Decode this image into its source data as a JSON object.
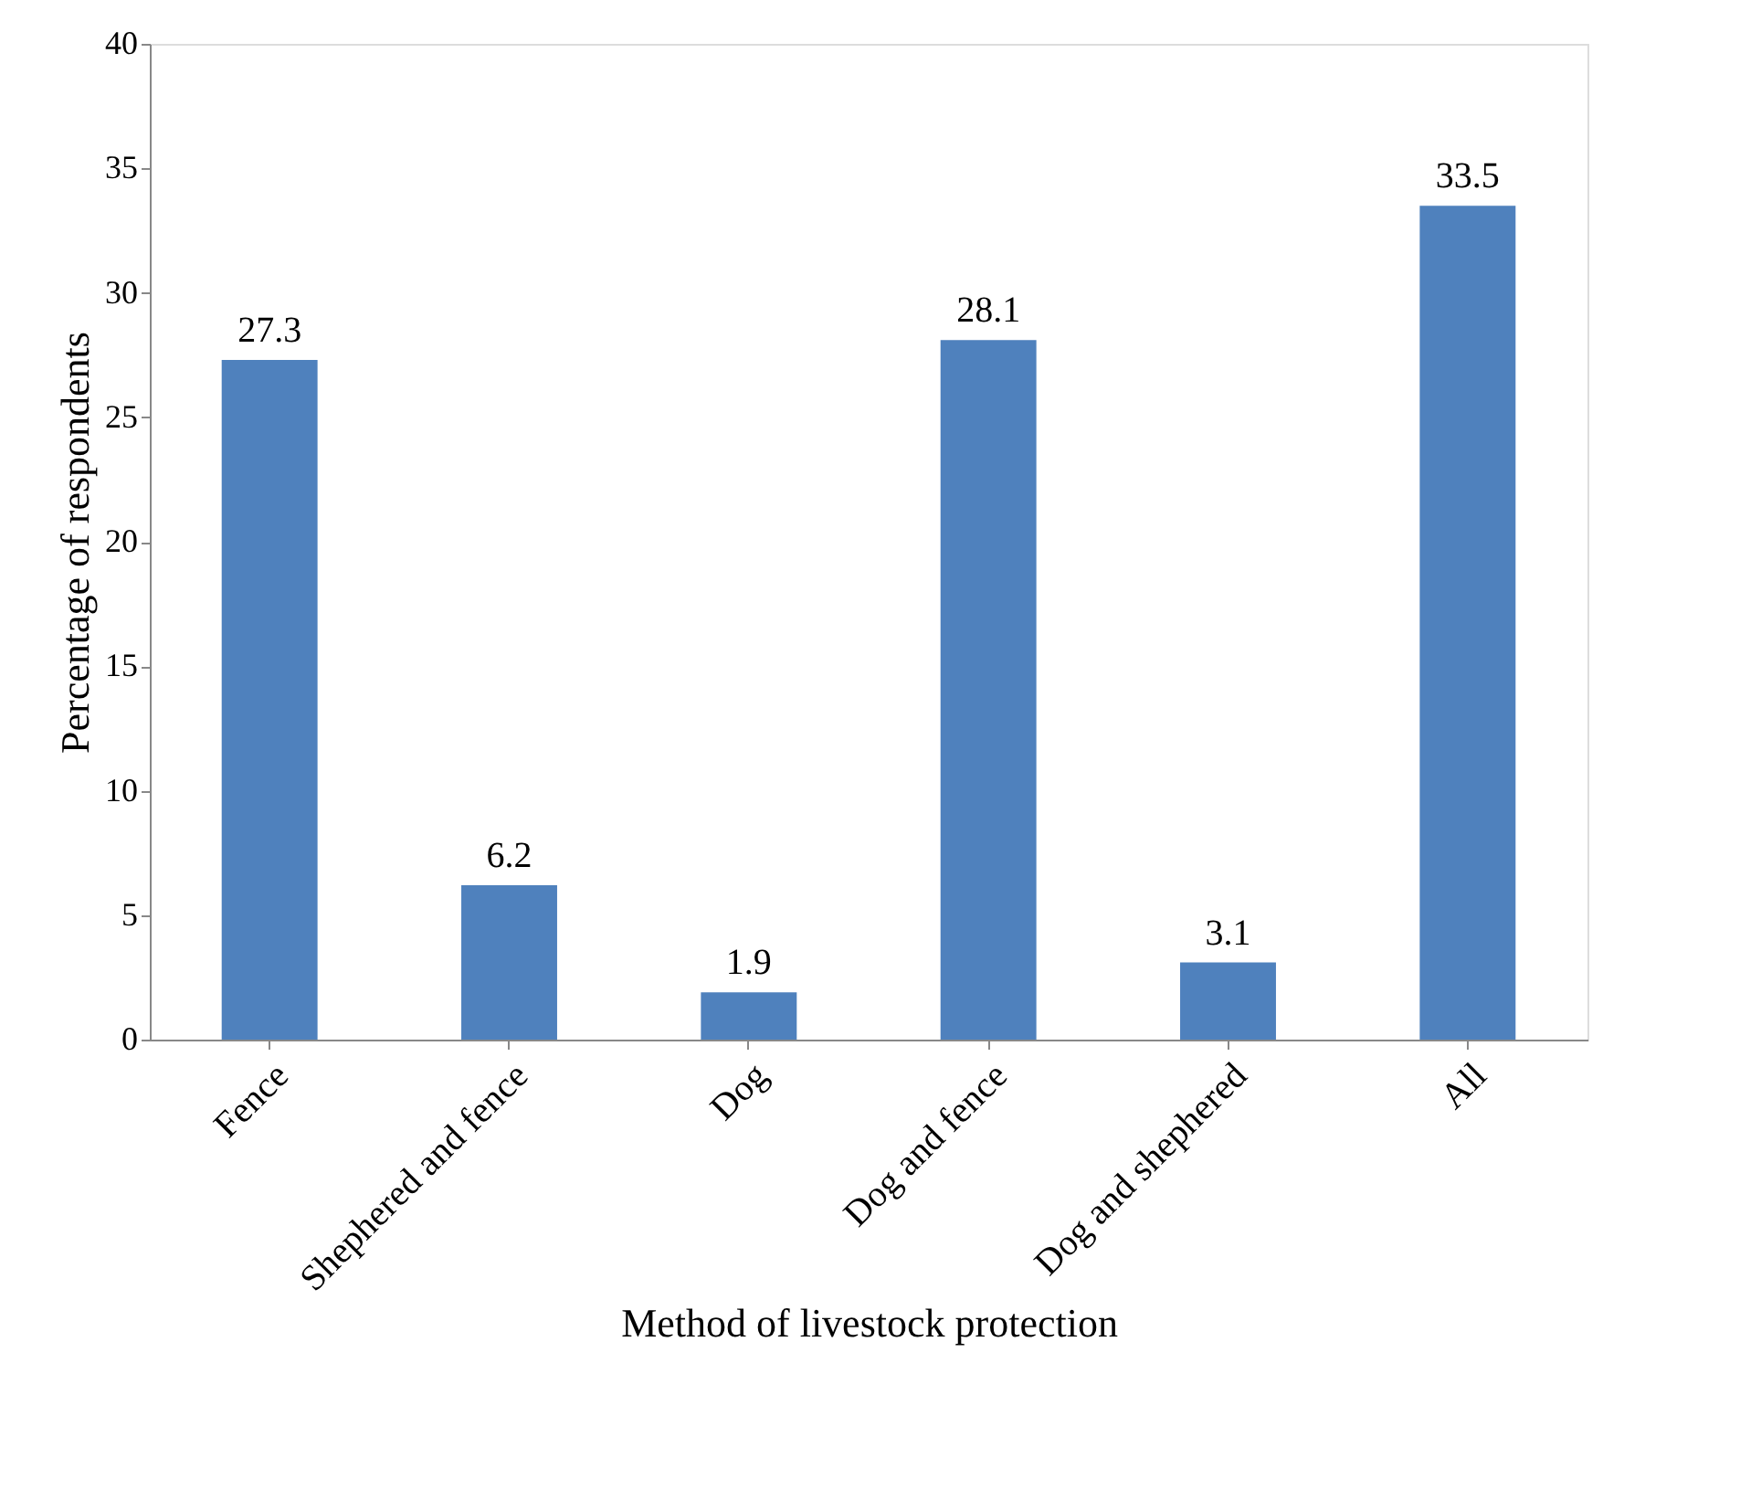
{
  "chart_data": {
    "type": "bar",
    "xlabel": "Method of livestock protection",
    "ylabel": "Percentage of respondents",
    "categories": [
      "Fence",
      "Shephered and fence",
      "Dog",
      "Dog and fence",
      "Dog and shephered",
      "All"
    ],
    "values": [
      27.3,
      6.2,
      1.9,
      28.1,
      3.1,
      33.5
    ],
    "color": "#4f81bd",
    "ylim": [
      0,
      40
    ],
    "yticks": [
      0,
      5,
      10,
      15,
      20,
      25,
      30,
      35,
      40
    ],
    "grid": false,
    "data_labels": true
  }
}
